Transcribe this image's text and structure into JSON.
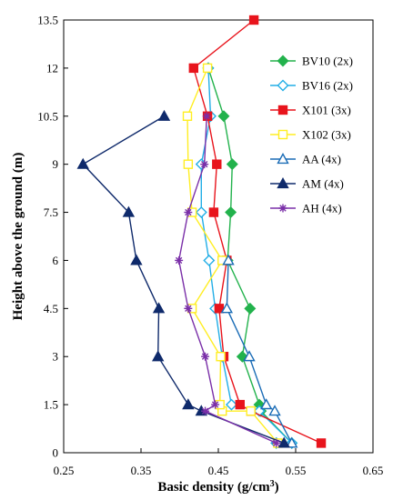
{
  "chart_data": {
    "type": "line",
    "xlabel": "Basic density (g/cm³)",
    "xlabel_main": "Basic density (g/cm",
    "xlabel_sup": "3",
    "xlabel_tail": ")",
    "ylabel": "Height above the ground (m)",
    "xlim": [
      0.25,
      0.65
    ],
    "ylim": [
      0,
      13.5
    ],
    "x_ticks": [
      "0.25",
      "0.35",
      "0.45",
      "0.55",
      "0.65"
    ],
    "y_ticks": [
      "0",
      "1.5",
      "3",
      "4.5",
      "6",
      "7.5",
      "9",
      "10.5",
      "12",
      "13.5"
    ],
    "grid": false,
    "legend_position": "top-right",
    "series": [
      {
        "name": "BV10 (2x)",
        "color": "#22b24c",
        "marker": "diamond",
        "filled": true,
        "points": [
          [
            0.525,
            0.3
          ],
          [
            0.545,
            0.3
          ],
          [
            0.505,
            1.3
          ],
          [
            0.503,
            1.5
          ],
          [
            0.481,
            3
          ],
          [
            0.491,
            4.5
          ],
          [
            0.462,
            6
          ],
          [
            0.466,
            7.5
          ],
          [
            0.468,
            9
          ],
          [
            0.457,
            10.5
          ],
          [
            0.437,
            12
          ]
        ]
      },
      {
        "name": "BV16 (2x)",
        "color": "#22aee6",
        "marker": "diamond",
        "filled": false,
        "points": [
          [
            0.525,
            0.3
          ],
          [
            0.545,
            0.3
          ],
          [
            0.503,
            1.3
          ],
          [
            0.467,
            1.5
          ],
          [
            0.455,
            3
          ],
          [
            0.446,
            4.5
          ],
          [
            0.438,
            6
          ],
          [
            0.428,
            7.5
          ],
          [
            0.428,
            9
          ],
          [
            0.44,
            10.5
          ],
          [
            0.437,
            12
          ]
        ]
      },
      {
        "name": "X101 (3x)",
        "color": "#e8141c",
        "marker": "square",
        "filled": true,
        "points": [
          [
            0.583,
            0.3
          ],
          [
            0.492,
            1.3
          ],
          [
            0.478,
            1.5
          ],
          [
            0.457,
            3
          ],
          [
            0.451,
            4.5
          ],
          [
            0.461,
            6
          ],
          [
            0.444,
            7.5
          ],
          [
            0.448,
            9
          ],
          [
            0.436,
            10.5
          ],
          [
            0.418,
            12
          ],
          [
            0.496,
            13.5
          ]
        ]
      },
      {
        "name": "X102 (3x)",
        "color": "#ffee22",
        "marker": "square",
        "filled": false,
        "points": [
          [
            0.527,
            0.3
          ],
          [
            0.492,
            1.3
          ],
          [
            0.455,
            1.3
          ],
          [
            0.452,
            1.5
          ],
          [
            0.453,
            3
          ],
          [
            0.416,
            4.5
          ],
          [
            0.455,
            6
          ],
          [
            0.416,
            7.5
          ],
          [
            0.411,
            9
          ],
          [
            0.41,
            10.5
          ],
          [
            0.436,
            12
          ]
        ]
      },
      {
        "name": "AA (4x)",
        "color": "#1a6cb6",
        "marker": "triangle",
        "filled": false,
        "points": [
          [
            0.545,
            0.3
          ],
          [
            0.523,
            1.3
          ],
          [
            0.512,
            1.5
          ],
          [
            0.49,
            3
          ],
          [
            0.461,
            4.5
          ],
          [
            0.463,
            6
          ]
        ]
      },
      {
        "name": "AM (4x)",
        "color": "#0f2a6b",
        "marker": "triangle",
        "filled": true,
        "points": [
          [
            0.535,
            0.3
          ],
          [
            0.428,
            1.3
          ],
          [
            0.411,
            1.5
          ],
          [
            0.372,
            3
          ],
          [
            0.373,
            4.5
          ],
          [
            0.344,
            6
          ],
          [
            0.334,
            7.5
          ],
          [
            0.275,
            9
          ],
          [
            0.38,
            10.5
          ]
        ]
      },
      {
        "name": "AH (4x)",
        "color": "#7a2fa8",
        "marker": "star",
        "filled": false,
        "points": [
          [
            0.525,
            0.3
          ],
          [
            0.433,
            1.3
          ],
          [
            0.446,
            1.5
          ],
          [
            0.433,
            3
          ],
          [
            0.411,
            4.5
          ],
          [
            0.399,
            6
          ],
          [
            0.411,
            7.5
          ],
          [
            0.432,
            9
          ],
          [
            0.435,
            10.5
          ]
        ]
      }
    ]
  }
}
